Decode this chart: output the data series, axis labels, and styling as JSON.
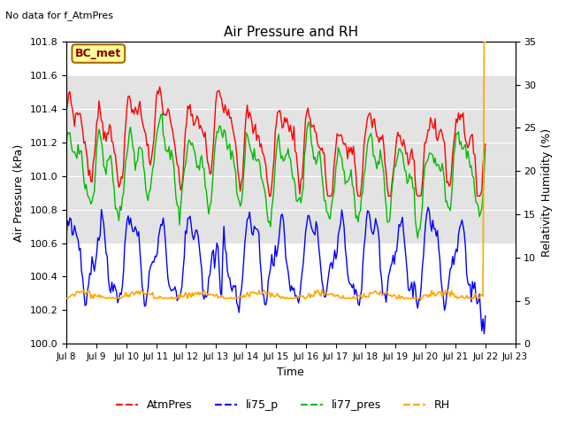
{
  "title": "Air Pressure and RH",
  "subtitle": "No data for f_AtmPres",
  "xlabel": "Time",
  "ylabel_left": "Air Pressure (kPa)",
  "ylabel_right": "Relativity Humidity (%)",
  "ylim_left": [
    100.0,
    101.8
  ],
  "ylim_right": [
    0,
    35
  ],
  "yticks_left": [
    100.0,
    100.2,
    100.4,
    100.6,
    100.8,
    101.0,
    101.2,
    101.4,
    101.6,
    101.8
  ],
  "yticks_right": [
    0,
    5,
    10,
    15,
    20,
    25,
    30,
    35
  ],
  "xlim": [
    8,
    23
  ],
  "xtick_days": [
    8,
    9,
    10,
    11,
    12,
    13,
    14,
    15,
    16,
    17,
    18,
    19,
    20,
    21,
    22,
    23
  ],
  "xtick_labels": [
    "Jul 8",
    "Jul 9",
    "Jul 10",
    "Jul 11",
    "Jul 12",
    "Jul 13",
    "Jul 14",
    "Jul 15",
    "Jul 16",
    "Jul 17",
    "Jul 18",
    "Jul 19",
    "Jul 20",
    "Jul 21",
    "Jul 22",
    "Jul 23"
  ],
  "colors": {
    "AtmPres": "#ff0000",
    "li75_p": "#0000ff",
    "li77_pres": "#00bb00",
    "RH": "#ffa500",
    "band_low": 100.6,
    "band_high": 101.6,
    "band_color": "#d8d8d8",
    "annotation_box_face": "#ffff99",
    "annotation_box_edge": "#aa6600"
  },
  "legend_entries": [
    "AtmPres",
    "li75_p",
    "li77_pres",
    "RH"
  ],
  "annotation_text": "BC_met",
  "band_alpha": 0.7,
  "linewidth": 1.0
}
